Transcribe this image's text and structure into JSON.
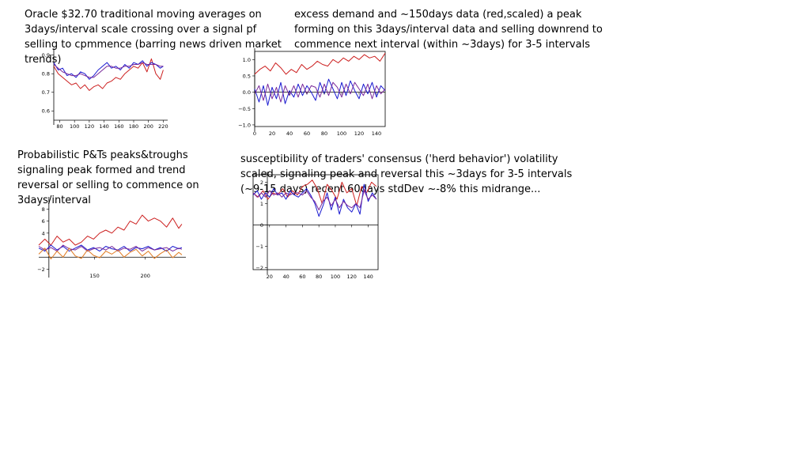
{
  "captions": {
    "c1": "Oracle $32.70 traditional moving averages on 3days/interval scale crossing over a signal pf selling to cpmmence (barring news driven market trends)",
    "c2": "excess demand and ~150days data (red,scaled) a peak forming on this 3days/interval data and selling downrend to commence next interval (within ~3days) for 3-5 intervals",
    "c3": "Probabilistic P&Ts peaks&troughs signaling peak formed and trend reversal or selling to commence on 3days/interval",
    "c4_line1": "susceptibility of traders' consensus ('herd behavior') volatility scaled, signaling peak and reversal this ~3days for 3-5 intervals",
    "c4_line2": "(~9-15 days) recent 60days stdDev ~-8% this midrange..."
  },
  "colors": {
    "red": "#cc1f1f",
    "blue": "#1a1ad0",
    "purple": "#7a2a9a",
    "orange": "#e07a20"
  },
  "chart_data": [
    {
      "type": "line",
      "title": "",
      "xlabel": "",
      "ylabel": "",
      "xlim": [
        72,
        226
      ],
      "ylim": [
        0.55,
        0.92
      ],
      "xticks": [
        80,
        100,
        120,
        140,
        160,
        180,
        200,
        220
      ],
      "yticks": [
        0.6,
        0.7,
        0.8,
        0.9
      ],
      "ytick_labels": [
        "0.6",
        "0.7",
        "0.8",
        "0.9"
      ],
      "series": [
        {
          "color": "red",
          "x": [
            72,
            78,
            84,
            90,
            96,
            102,
            108,
            114,
            120,
            126,
            132,
            138,
            144,
            150,
            156,
            162,
            168,
            174,
            180,
            186,
            192,
            198,
            204,
            210,
            216,
            220
          ],
          "values": [
            0.84,
            0.8,
            0.78,
            0.76,
            0.74,
            0.75,
            0.72,
            0.74,
            0.71,
            0.73,
            0.74,
            0.72,
            0.75,
            0.76,
            0.78,
            0.77,
            0.8,
            0.82,
            0.84,
            0.83,
            0.86,
            0.81,
            0.88,
            0.8,
            0.77,
            0.82
          ]
        },
        {
          "color": "blue",
          "x": [
            72,
            78,
            84,
            90,
            96,
            102,
            108,
            114,
            120,
            126,
            132,
            138,
            144,
            150,
            156,
            162,
            168,
            174,
            180,
            186,
            192,
            198,
            204,
            210,
            216,
            220
          ],
          "values": [
            0.86,
            0.82,
            0.83,
            0.79,
            0.8,
            0.78,
            0.81,
            0.8,
            0.77,
            0.79,
            0.82,
            0.84,
            0.86,
            0.83,
            0.84,
            0.82,
            0.85,
            0.83,
            0.86,
            0.85,
            0.87,
            0.84,
            0.86,
            0.85,
            0.83,
            0.84
          ]
        },
        {
          "color": "purple",
          "x": [
            72,
            78,
            84,
            90,
            96,
            102,
            108,
            114,
            120,
            126,
            132,
            138,
            144,
            150,
            156,
            162,
            168,
            174,
            180,
            186,
            192,
            198,
            204,
            210,
            216,
            220
          ],
          "values": [
            0.85,
            0.83,
            0.81,
            0.8,
            0.79,
            0.79,
            0.8,
            0.79,
            0.78,
            0.78,
            0.8,
            0.82,
            0.84,
            0.84,
            0.83,
            0.83,
            0.84,
            0.84,
            0.85,
            0.85,
            0.86,
            0.85,
            0.85,
            0.85,
            0.84,
            0.84
          ]
        }
      ]
    },
    {
      "type": "line",
      "title": "",
      "xlabel": "",
      "ylabel": "",
      "xlim": [
        0,
        150
      ],
      "ylim": [
        -1.05,
        1.25
      ],
      "xticks": [
        0,
        20,
        40,
        60,
        80,
        100,
        120,
        140
      ],
      "yticks": [
        -1.0,
        -0.5,
        0.0,
        0.5,
        1.0
      ],
      "ytick_labels": [
        "−1.0",
        "−0.5",
        "0.0",
        "0.5",
        "1.0"
      ],
      "series": [
        {
          "color": "red",
          "x": [
            0,
            6,
            12,
            18,
            24,
            30,
            36,
            42,
            48,
            54,
            60,
            66,
            72,
            78,
            84,
            90,
            96,
            102,
            108,
            114,
            120,
            126,
            132,
            138,
            144,
            150
          ],
          "values": [
            0.55,
            0.7,
            0.8,
            0.65,
            0.9,
            0.75,
            0.55,
            0.7,
            0.6,
            0.85,
            0.7,
            0.8,
            0.95,
            0.85,
            0.8,
            1.0,
            0.9,
            1.05,
            0.95,
            1.1,
            1.0,
            1.15,
            1.05,
            1.1,
            0.95,
            1.2
          ]
        },
        {
          "color": "blue",
          "x": [
            0,
            5,
            10,
            15,
            20,
            25,
            30,
            35,
            40,
            45,
            50,
            55,
            60,
            65,
            70,
            75,
            80,
            85,
            90,
            95,
            100,
            105,
            110,
            115,
            120,
            125,
            130,
            135,
            140,
            145,
            150
          ],
          "values": [
            0.1,
            -0.3,
            0.2,
            -0.4,
            0.15,
            -0.2,
            0.3,
            -0.35,
            0.05,
            -0.15,
            0.25,
            -0.1,
            0.2,
            0.0,
            -0.25,
            0.3,
            -0.05,
            0.4,
            0.1,
            -0.2,
            0.3,
            -0.1,
            0.35,
            0.05,
            -0.2,
            0.25,
            -0.05,
            0.3,
            -0.15,
            0.2,
            0.05
          ]
        },
        {
          "color": "purple",
          "x": [
            0,
            5,
            10,
            15,
            20,
            25,
            30,
            35,
            40,
            45,
            50,
            55,
            60,
            65,
            70,
            75,
            80,
            85,
            90,
            95,
            100,
            105,
            110,
            115,
            120,
            125,
            130,
            135,
            140,
            145,
            150
          ],
          "values": [
            -0.05,
            0.2,
            -0.25,
            0.25,
            -0.2,
            0.15,
            -0.3,
            0.2,
            -0.1,
            0.2,
            -0.15,
            0.25,
            -0.05,
            0.2,
            0.15,
            -0.15,
            0.25,
            -0.1,
            0.3,
            0.15,
            -0.15,
            0.25,
            -0.05,
            0.3,
            0.1,
            -0.1,
            0.25,
            -0.2,
            0.2,
            -0.05,
            0.1
          ]
        }
      ]
    },
    {
      "type": "line",
      "title": "",
      "xlabel": "",
      "ylabel": "",
      "xlim": [
        95,
        240
      ],
      "ylim": [
        -2.6,
        9.5
      ],
      "xticks": [
        150,
        200
      ],
      "yticks": [
        -2,
        4,
        6,
        8
      ],
      "ytick_labels": [
        "−2",
        "4",
        "6",
        "8"
      ],
      "series": [
        {
          "color": "red",
          "x": [
            95,
            101,
            107,
            113,
            119,
            125,
            131,
            137,
            143,
            149,
            155,
            161,
            167,
            173,
            179,
            185,
            191,
            197,
            203,
            209,
            215,
            221,
            227,
            233,
            236
          ],
          "values": [
            2.0,
            3.0,
            2.0,
            3.5,
            2.5,
            3.0,
            2.0,
            2.5,
            3.5,
            3.0,
            4.0,
            4.5,
            4.0,
            5.0,
            4.5,
            6.0,
            5.5,
            7.0,
            6.0,
            6.5,
            6.0,
            5.0,
            6.5,
            4.8,
            5.5
          ]
        },
        {
          "color": "blue",
          "x": [
            95,
            101,
            107,
            113,
            119,
            125,
            131,
            137,
            143,
            149,
            155,
            161,
            167,
            173,
            179,
            185,
            191,
            197,
            203,
            209,
            215,
            221,
            227,
            233,
            236
          ],
          "values": [
            1.5,
            1.0,
            2.0,
            1.2,
            1.8,
            1.0,
            1.5,
            2.0,
            1.2,
            1.6,
            1.0,
            1.8,
            1.4,
            1.2,
            1.8,
            1.0,
            1.6,
            1.4,
            1.8,
            1.2,
            1.6,
            1.0,
            1.8,
            1.4,
            1.6
          ]
        },
        {
          "color": "purple",
          "x": [
            95,
            101,
            107,
            113,
            119,
            125,
            131,
            137,
            143,
            149,
            155,
            161,
            167,
            173,
            179,
            185,
            191,
            197,
            203,
            209,
            215,
            221,
            227,
            233,
            236
          ],
          "values": [
            1.8,
            1.2,
            1.6,
            1.0,
            2.0,
            1.4,
            1.2,
            1.8,
            1.0,
            1.4,
            1.6,
            1.2,
            1.8,
            1.0,
            1.5,
            1.3,
            1.8,
            1.0,
            1.6,
            1.2,
            1.4,
            1.6,
            1.0,
            1.5,
            1.3
          ]
        },
        {
          "color": "orange",
          "x": [
            95,
            101,
            107,
            113,
            119,
            125,
            131,
            137,
            143,
            149,
            155,
            161,
            167,
            173,
            179,
            185,
            191,
            197,
            203,
            209,
            215,
            221,
            227,
            233,
            236
          ],
          "values": [
            0.5,
            1.5,
            -0.3,
            1.0,
            0.0,
            1.5,
            0.2,
            -0.2,
            1.2,
            0.3,
            -0.1,
            1.0,
            0.5,
            1.2,
            0.0,
            0.8,
            1.3,
            0.2,
            1.0,
            -0.2,
            0.6,
            1.2,
            -0.1,
            0.8,
            0.4
          ]
        }
      ]
    },
    {
      "type": "line",
      "title": "",
      "xlabel": "",
      "ylabel": "",
      "xlim": [
        0,
        152
      ],
      "ylim": [
        -2.1,
        2.35
      ],
      "xticks": [
        20,
        40,
        60,
        80,
        100,
        120,
        140
      ],
      "yticks": [
        -2,
        -1,
        0,
        1,
        2
      ],
      "ytick_labels": [
        "−2",
        "−1",
        "0",
        "1",
        "2"
      ],
      "series": [
        {
          "color": "red",
          "x": [
            0,
            6,
            12,
            18,
            24,
            30,
            36,
            42,
            48,
            54,
            60,
            66,
            72,
            78,
            84,
            90,
            96,
            102,
            108,
            114,
            120,
            126,
            132,
            138,
            144,
            150
          ],
          "values": [
            1.5,
            1.3,
            1.6,
            1.2,
            1.5,
            1.4,
            1.7,
            1.3,
            1.6,
            1.4,
            1.8,
            1.9,
            2.1,
            1.7,
            1.0,
            1.9,
            1.6,
            1.2,
            2.0,
            1.5,
            1.7,
            0.9,
            1.8,
            1.5,
            2.0,
            1.8
          ]
        },
        {
          "color": "blue",
          "x": [
            0,
            5,
            10,
            15,
            20,
            25,
            30,
            35,
            40,
            45,
            50,
            55,
            60,
            65,
            70,
            75,
            80,
            85,
            90,
            95,
            100,
            105,
            110,
            115,
            120,
            125,
            130,
            135,
            140,
            145,
            150
          ],
          "values": [
            1.4,
            1.6,
            1.2,
            1.5,
            1.3,
            1.7,
            1.4,
            1.5,
            1.2,
            1.6,
            1.4,
            1.3,
            1.5,
            1.7,
            1.4,
            1.0,
            0.4,
            0.9,
            1.5,
            0.7,
            1.3,
            0.5,
            1.2,
            0.8,
            0.6,
            1.0,
            0.5,
            1.9,
            1.1,
            1.5,
            1.2
          ]
        },
        {
          "color": "purple",
          "x": [
            0,
            5,
            10,
            15,
            20,
            25,
            30,
            35,
            40,
            45,
            50,
            55,
            60,
            65,
            70,
            75,
            80,
            85,
            90,
            95,
            100,
            105,
            110,
            115,
            120,
            125,
            130,
            135,
            140,
            145,
            150
          ],
          "values": [
            1.5,
            1.3,
            1.5,
            1.3,
            1.6,
            1.4,
            1.5,
            1.3,
            1.5,
            1.4,
            1.5,
            1.5,
            1.4,
            1.6,
            1.3,
            1.1,
            0.7,
            1.1,
            1.3,
            0.9,
            1.2,
            0.8,
            1.1,
            0.9,
            0.8,
            1.0,
            0.8,
            1.6,
            1.2,
            1.4,
            1.2
          ]
        }
      ]
    }
  ]
}
